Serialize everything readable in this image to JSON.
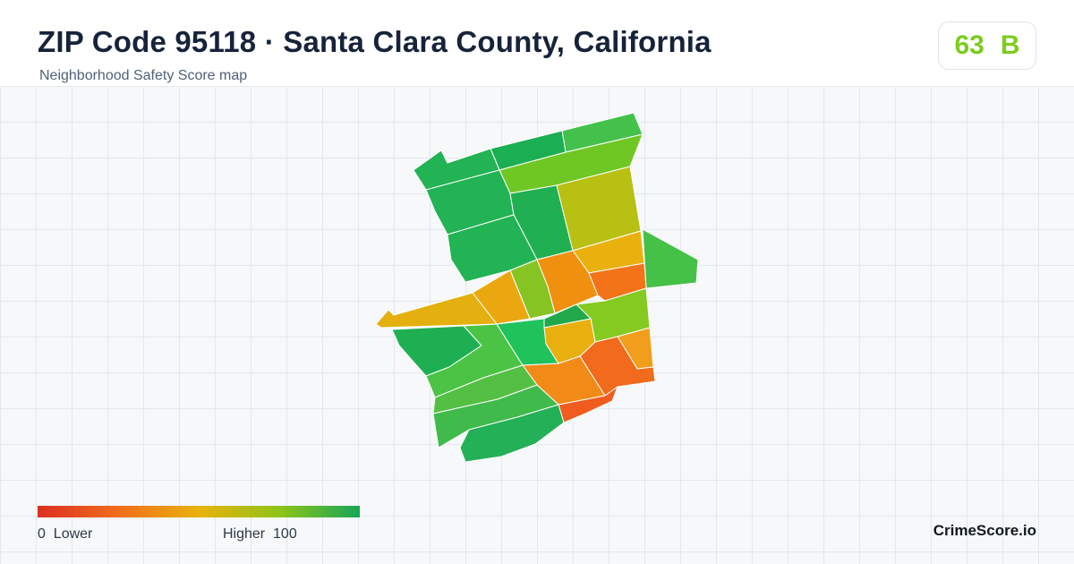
{
  "header": {
    "title": "ZIP Code 95118 · Santa Clara County, California",
    "subtitle": "Neighborhood Safety Score map"
  },
  "score": {
    "value": "63",
    "grade": "B",
    "color": "#7ccc1d"
  },
  "legend": {
    "min": "0",
    "min_label": "Lower",
    "max_label": "Higher",
    "max": "100",
    "colors": [
      "#dc2f22",
      "#f06d1d",
      "#e9b20c",
      "#8fc41a",
      "#17a656"
    ]
  },
  "brand": {
    "name": "CrimeScore.io"
  }
}
